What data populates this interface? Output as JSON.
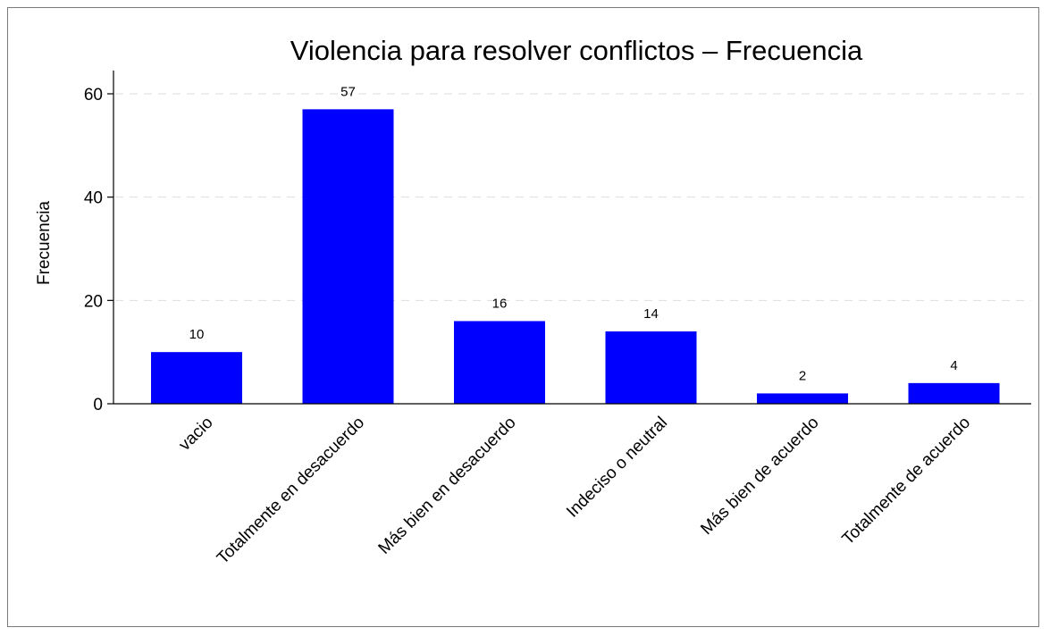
{
  "chart_data": {
    "type": "bar",
    "title": "Violencia para resolver conflictos – Frecuencia",
    "xlabel": "",
    "ylabel": "Frecuencia",
    "categories": [
      "vacio",
      "Totalmente en desacuerdo",
      "Más bien en desacuerdo",
      "Indeciso o neutral",
      "Más bien de acuerdo",
      "Totalmente de acuerdo"
    ],
    "values": [
      10,
      57,
      16,
      14,
      2,
      4
    ],
    "data_labels": [
      "10",
      "57",
      "16",
      "14",
      "2",
      "4"
    ],
    "ylim": [
      0,
      62
    ],
    "yticks": [
      0,
      20,
      40,
      60
    ],
    "ytick_labels": [
      "0",
      "20",
      "40",
      "60"
    ],
    "grid": "horizontal dashed",
    "bar_color": "#0000ff"
  }
}
